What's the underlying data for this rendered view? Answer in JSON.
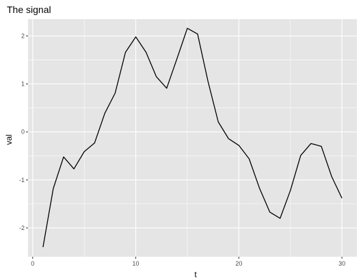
{
  "chart_data": {
    "type": "line",
    "title": "The signal",
    "xlabel": "t",
    "ylabel": "val",
    "xlim": [
      -0.45,
      31.45
    ],
    "ylim": [
      -2.6,
      2.35
    ],
    "xticks": [
      0,
      10,
      20,
      30
    ],
    "yticks": [
      -2,
      -1,
      0,
      1,
      2
    ],
    "xtick_labels": [
      "0",
      "10",
      "20",
      "30"
    ],
    "ytick_labels": [
      "-2",
      "-1",
      "0",
      "1",
      "2"
    ],
    "grid": true,
    "panel_color": "#e5e5e5",
    "line_color": "#000000",
    "x": [
      1,
      2,
      3,
      4,
      5,
      6,
      7,
      8,
      9,
      10,
      11,
      12,
      13,
      14,
      15,
      16,
      17,
      18,
      19,
      20,
      21,
      22,
      23,
      24,
      25,
      26,
      27,
      28,
      29,
      30
    ],
    "y": [
      -2.4,
      -1.18,
      -0.52,
      -0.77,
      -0.41,
      -0.23,
      0.39,
      0.81,
      1.66,
      1.98,
      1.66,
      1.15,
      0.91,
      1.53,
      2.16,
      2.04,
      1.06,
      0.21,
      -0.14,
      -0.28,
      -0.56,
      -1.17,
      -1.67,
      -1.8,
      -1.22,
      -0.49,
      -0.24,
      -0.3,
      -0.93,
      -1.38
    ]
  }
}
